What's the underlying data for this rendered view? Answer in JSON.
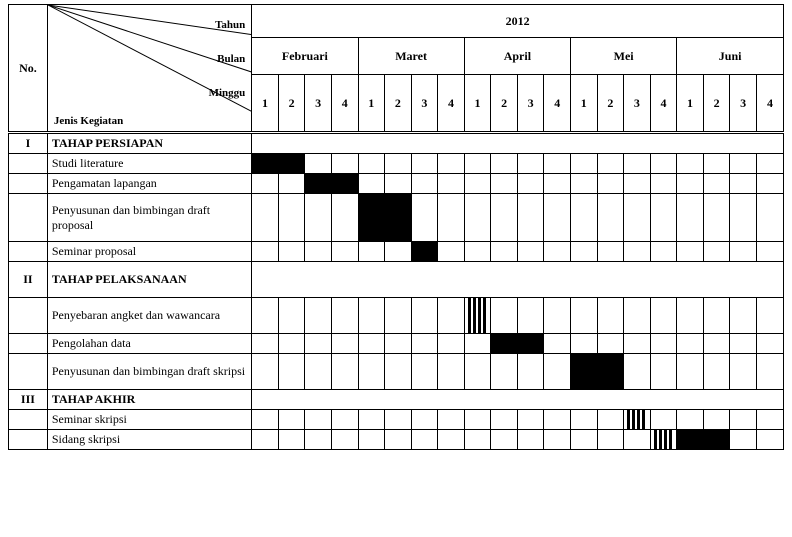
{
  "header": {
    "no": "No.",
    "year_label": "Tahun",
    "month_label": "Bulan",
    "week_label": "Minggu",
    "activity_label": "Jenis Kegiatan",
    "year_value": "2012",
    "months": [
      "Februari",
      "Maret",
      "April",
      "Mei",
      "Juni"
    ],
    "weeks": [
      "1",
      "2",
      "3",
      "4"
    ]
  },
  "sections": [
    {
      "no": "I",
      "title": "TAHAP PERSIAPAN",
      "rows": [
        {
          "label": "Studi literature",
          "fill_full": [
            0,
            1
          ],
          "fill_stripe": [],
          "tall": false
        },
        {
          "label": "Pengamatan lapangan",
          "fill_full": [
            2,
            3
          ],
          "fill_stripe": [],
          "tall": false
        },
        {
          "label": "Penyusunan dan bimbingan draft proposal",
          "fill_full": [
            4,
            5
          ],
          "fill_stripe": [],
          "tall": true
        },
        {
          "label": "Seminar proposal",
          "fill_full": [
            6
          ],
          "fill_stripe": [],
          "tall": false
        }
      ]
    },
    {
      "no": "II",
      "title": "TAHAP PELAKSANAAN",
      "rows": [
        {
          "label": "Penyebaran angket dan wawancara",
          "fill_full": [],
          "fill_stripe": [
            8
          ],
          "tall": "med"
        },
        {
          "label": "Pengolahan data",
          "fill_full": [
            9,
            10
          ],
          "fill_stripe": [],
          "tall": false
        },
        {
          "label": "Penyusunan dan bimbingan draft skripsi",
          "fill_full": [
            12,
            13
          ],
          "fill_stripe": [],
          "tall": "med"
        }
      ]
    },
    {
      "no": "III",
      "title": "TAHAP AKHIR",
      "rows": [
        {
          "label": "Seminar skripsi",
          "fill_full": [],
          "fill_stripe": [
            14
          ],
          "tall": false
        },
        {
          "label": "Sidang skripsi",
          "fill_full": [
            16,
            17
          ],
          "fill_stripe": [
            15
          ],
          "tall": false
        }
      ]
    }
  ],
  "style": {
    "fill_color": "#000000",
    "border_color": "#000000",
    "bg_color": "#ffffff",
    "font": "Times New Roman",
    "header_fontsize": 11,
    "body_fontsize": 12
  }
}
